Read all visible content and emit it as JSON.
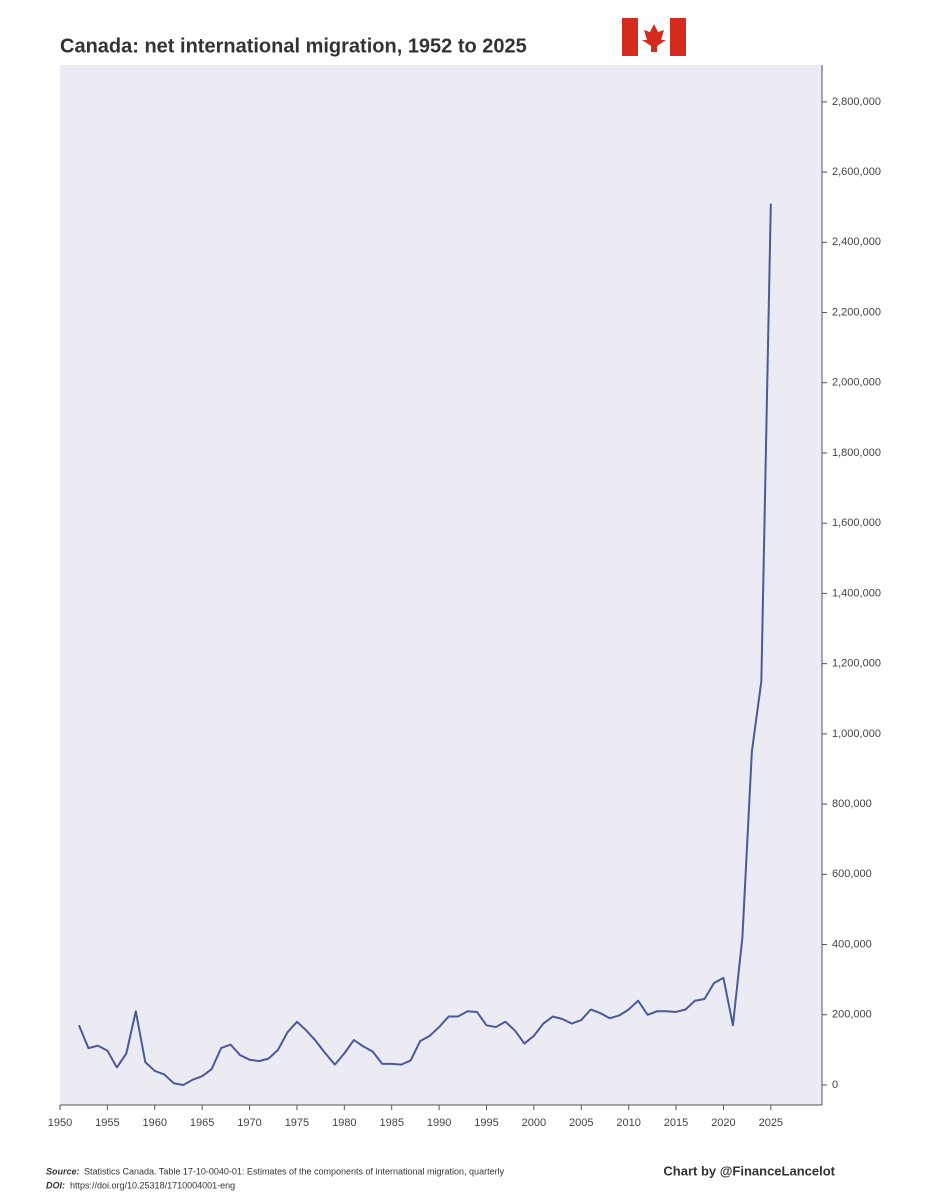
{
  "chart_data": {
    "type": "line",
    "title": "Canada: net international migration, 1952 to 2025",
    "x": [
      1952,
      1953,
      1954,
      1955,
      1956,
      1957,
      1958,
      1959,
      1960,
      1961,
      1962,
      1963,
      1964,
      1965,
      1966,
      1967,
      1968,
      1969,
      1970,
      1971,
      1972,
      1973,
      1974,
      1975,
      1976,
      1977,
      1978,
      1979,
      1980,
      1981,
      1982,
      1983,
      1984,
      1985,
      1986,
      1987,
      1988,
      1989,
      1990,
      1991,
      1992,
      1993,
      1994,
      1995,
      1996,
      1997,
      1998,
      1999,
      2000,
      2001,
      2002,
      2003,
      2004,
      2005,
      2006,
      2007,
      2008,
      2009,
      2010,
      2011,
      2012,
      2013,
      2014,
      2015,
      2016,
      2017,
      2018,
      2019,
      2020,
      2021,
      2022,
      2023,
      2024,
      2025
    ],
    "values": [
      170000,
      105000,
      112000,
      98000,
      50000,
      90000,
      210000,
      65000,
      40000,
      30000,
      5000,
      0,
      15000,
      25000,
      45000,
      105000,
      115000,
      85000,
      72000,
      68000,
      75000,
      100000,
      150000,
      180000,
      155000,
      125000,
      90000,
      58000,
      90000,
      128000,
      110000,
      95000,
      60000,
      60000,
      58000,
      70000,
      125000,
      140000,
      165000,
      195000,
      195000,
      210000,
      208000,
      170000,
      165000,
      180000,
      155000,
      118000,
      140000,
      175000,
      195000,
      188000,
      175000,
      185000,
      215000,
      205000,
      190000,
      198000,
      215000,
      240000,
      200000,
      210000,
      210000,
      208000,
      215000,
      240000,
      245000,
      290000,
      305000,
      170000,
      420000,
      950000,
      1150000,
      2510000
    ],
    "color": "#4a5a9c",
    "xlim": [
      1950,
      2030.4
    ],
    "xticks": [
      1950,
      1955,
      1960,
      1965,
      1970,
      1975,
      1980,
      1985,
      1990,
      1995,
      2000,
      2005,
      2010,
      2015,
      2020,
      2025
    ],
    "ylim": [
      -57000,
      2905000
    ],
    "yticks": [
      0,
      {
        "value": 200000,
        "label": "200,000"
      },
      {
        "value": 400000,
        "label": "400,000"
      },
      {
        "value": 600000,
        "label": "600,000"
      },
      {
        "value": 800000,
        "label": "800,000"
      },
      {
        "value": 1000000,
        "label": "1,000,000"
      },
      {
        "value": 1200000,
        "label": "1,200,000"
      },
      {
        "value": 1400000,
        "label": "1,400,000"
      },
      {
        "value": 1600000,
        "label": "1,600,000"
      },
      {
        "value": 1800000,
        "label": "1,800,000"
      },
      {
        "value": 2000000,
        "label": "2,000,000"
      },
      {
        "value": 2200000,
        "label": "2,200,000"
      },
      {
        "value": 2400000,
        "label": "2,400,000"
      },
      {
        "value": 2600000,
        "label": "2,600,000"
      },
      {
        "value": 2800000,
        "label": "2,800,000"
      }
    ],
    "grid": false,
    "source_label": "Source:",
    "source": "Statistics Canada. Table 17-10-0040-01: Estimates of the components of international migration, quarterly",
    "doi_label": "DOI:",
    "doi": "https://doi.org/10.25318/1710004001-eng",
    "credit": "Chart by @FinanceLancelot"
  }
}
